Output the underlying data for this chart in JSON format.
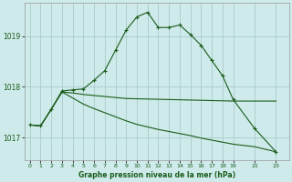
{
  "title": "Graphe pression niveau de la mer (hPa)",
  "background_color": "#ceeaea",
  "grid_color": "#aacccc",
  "line_color": "#1a5c1a",
  "x_positions": [
    0,
    1,
    2,
    3,
    4,
    5,
    6,
    7,
    8,
    9,
    10,
    11,
    12,
    13,
    14,
    15,
    16,
    17,
    18,
    19,
    21,
    23
  ],
  "x_labels": [
    "0",
    "1",
    "2",
    "3",
    "4",
    "5",
    "6",
    "7",
    "8",
    "9",
    "10",
    "11",
    "12",
    "13",
    "14",
    "15",
    "16",
    "17",
    "18",
    "19",
    "21",
    "23"
  ],
  "ylim": [
    1016.55,
    1019.65
  ],
  "yticks": [
    1017,
    1018,
    1019
  ],
  "series1_x": [
    0,
    1,
    2,
    3,
    4,
    5,
    6,
    7,
    8,
    9,
    10,
    11,
    12,
    13,
    14,
    15,
    16,
    17,
    18,
    19,
    21,
    23
  ],
  "series1_y": [
    1017.25,
    1017.23,
    1017.56,
    1017.92,
    1017.94,
    1017.96,
    1018.13,
    1018.32,
    1018.72,
    1019.12,
    1019.38,
    1019.47,
    1019.17,
    1019.17,
    1019.22,
    1019.03,
    1018.82,
    1018.52,
    1018.22,
    1017.75,
    1017.18,
    1016.72
  ],
  "series2_x": [
    0,
    1,
    2,
    3,
    4,
    5,
    6,
    7,
    8,
    9,
    19,
    23
  ],
  "series2_y": [
    1017.25,
    1017.23,
    1017.56,
    1017.9,
    1017.88,
    1017.85,
    1017.83,
    1017.81,
    1017.79,
    1017.77,
    1017.72,
    1017.72
  ],
  "series3_x": [
    0,
    1,
    2,
    3,
    4,
    5,
    6,
    7,
    8,
    9,
    10,
    11,
    12,
    13,
    14,
    15,
    16,
    17,
    18,
    19,
    21,
    23
  ],
  "series3_y": [
    1017.25,
    1017.23,
    1017.56,
    1017.9,
    1017.78,
    1017.66,
    1017.57,
    1017.49,
    1017.41,
    1017.33,
    1017.26,
    1017.21,
    1017.16,
    1017.12,
    1017.08,
    1017.04,
    1016.99,
    1016.95,
    1016.91,
    1016.87,
    1016.82,
    1016.72
  ]
}
